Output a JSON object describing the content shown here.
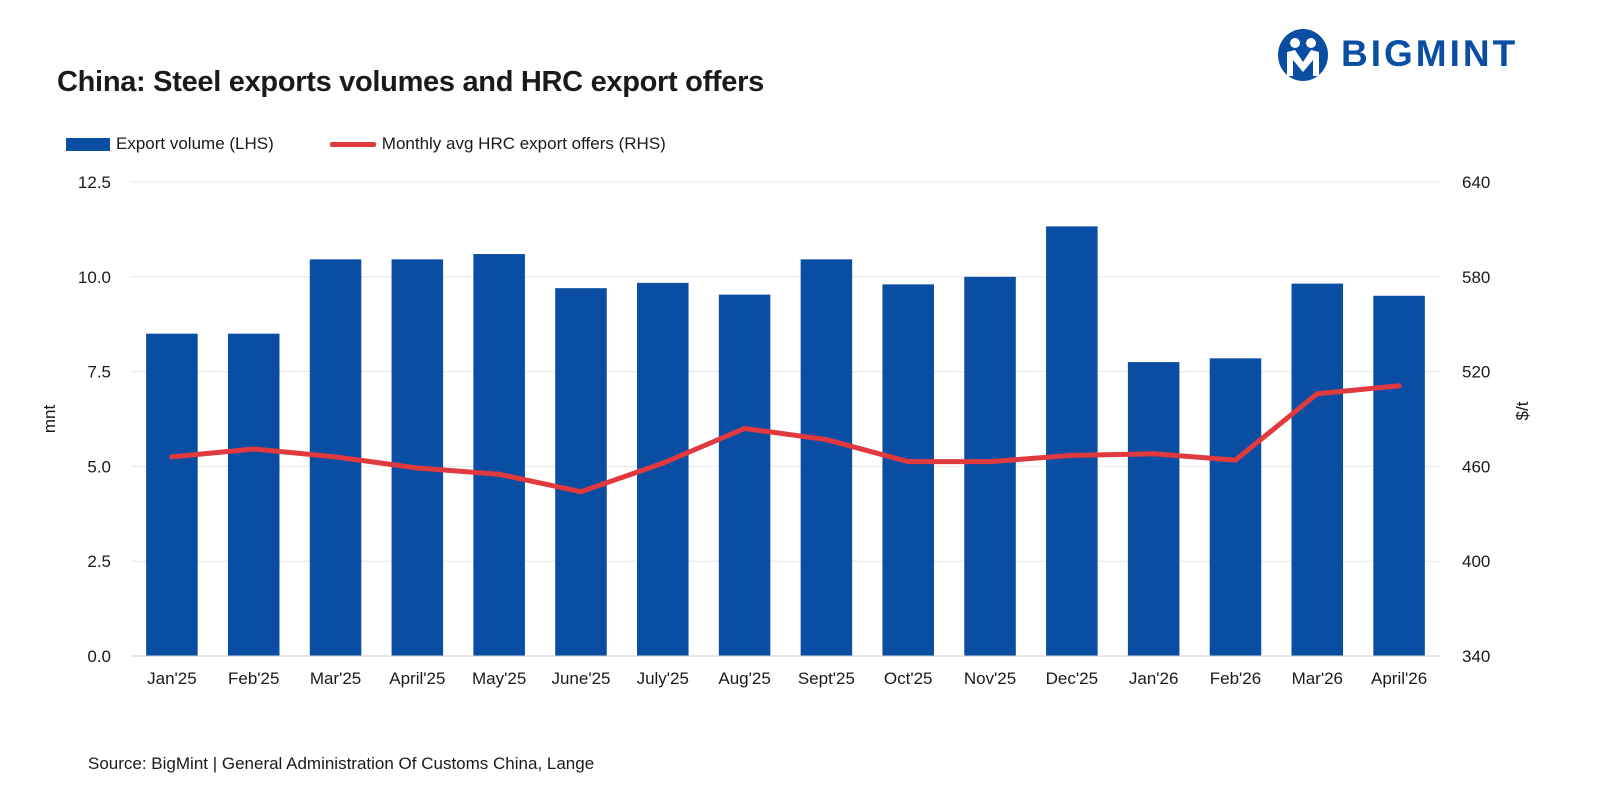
{
  "header": {
    "title": "China: Steel exports volumes and HRC export offers",
    "logo_text": "BIGMINT"
  },
  "colors": {
    "bar": "#0a4ea4",
    "line": "#e03a3e",
    "grid": "#e6e6e6",
    "brand": "#0a4ea4"
  },
  "footer": {
    "source": "Source: BigMint | General Administration Of Customs China, Lange"
  },
  "chart_data": {
    "type": "bar",
    "title": "China: Steel exports volumes and HRC export offers",
    "categories": [
      "Jan'25",
      "Feb'25",
      "Mar'25",
      "April'25",
      "May'25",
      "June'25",
      "July'25",
      "Aug'25",
      "Sept'25",
      "Oct'25",
      "Nov'25",
      "Dec'25",
      "Jan'26",
      "Feb'26",
      "Mar'26",
      "April'26"
    ],
    "series": [
      {
        "name": "Export volume (LHS)",
        "type": "bar",
        "axis": "left",
        "values": [
          8.5,
          8.5,
          10.46,
          10.46,
          10.6,
          9.7,
          9.84,
          9.53,
          10.46,
          9.8,
          10.0,
          11.33,
          7.75,
          7.85,
          9.82,
          9.5
        ]
      },
      {
        "name": "Monthly avg HRC export offers (RHS)",
        "type": "line",
        "axis": "right",
        "values": [
          466,
          471,
          466,
          459,
          455,
          444,
          462,
          484,
          477,
          463,
          463,
          467,
          468,
          464,
          506,
          511
        ]
      }
    ],
    "xlabel": "",
    "ylabel": "mnt",
    "y2label": "$/t",
    "ylim": [
      0,
      12.5
    ],
    "y2lim": [
      340,
      640
    ],
    "yticks": [
      "0.0",
      "2.5",
      "5.0",
      "7.5",
      "10.0",
      "12.5"
    ],
    "y2ticks": [
      "340",
      "400",
      "460",
      "520",
      "580",
      "640"
    ],
    "grid": true,
    "legend": "top-left"
  }
}
